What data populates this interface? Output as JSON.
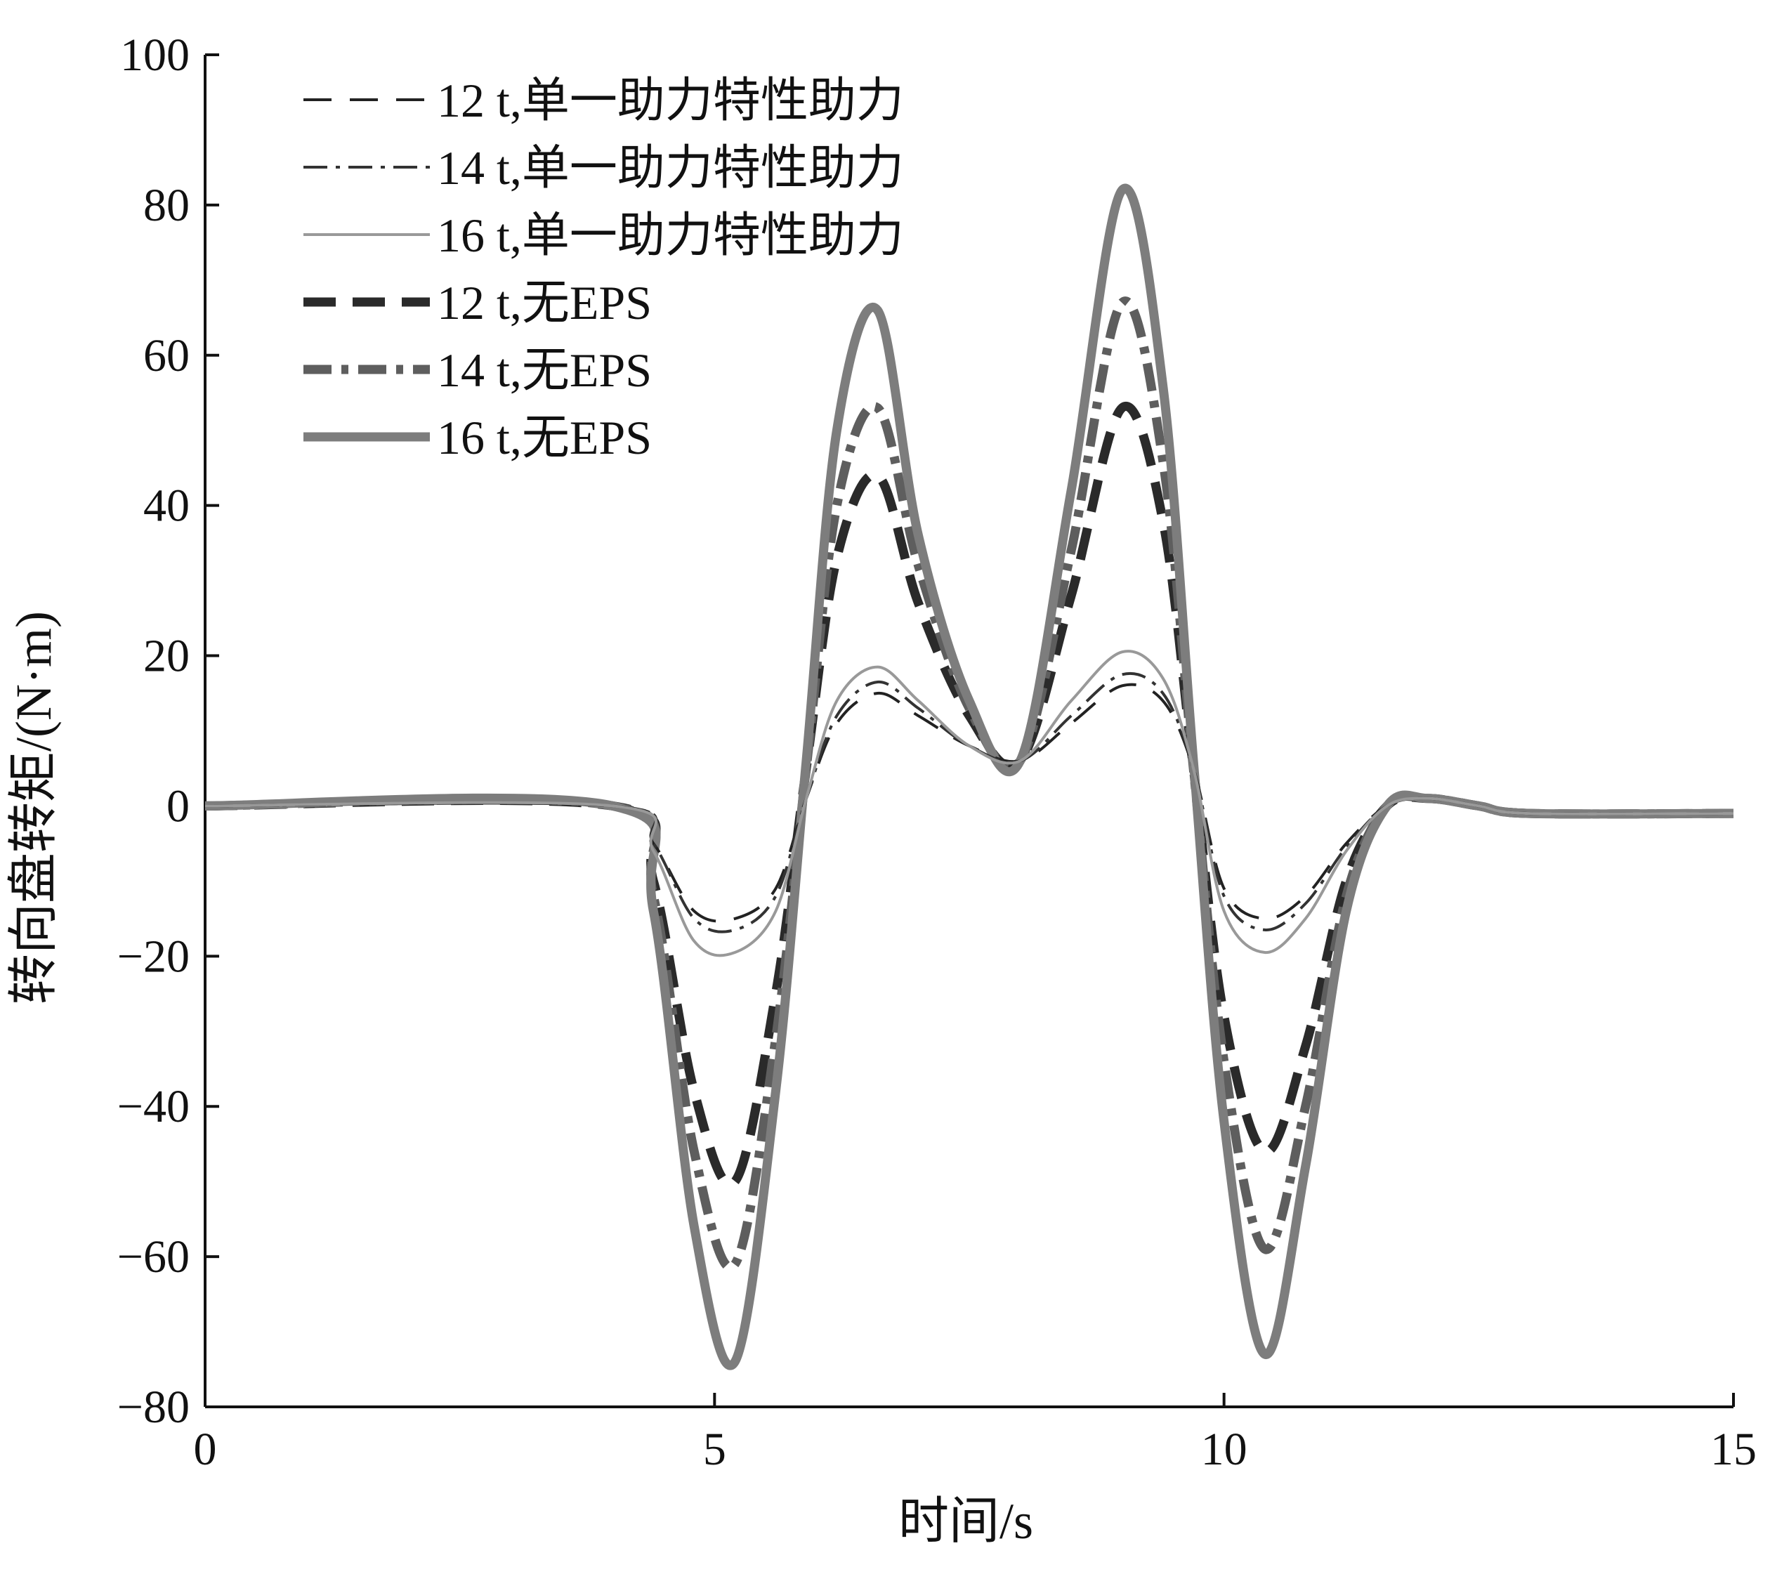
{
  "chart_data": {
    "type": "line",
    "xlabel": "时间/s",
    "ylabel": "转向盘转矩/(N·m)",
    "xlim": [
      0,
      15
    ],
    "ylim": [
      -80,
      100
    ],
    "xticks": [
      "0",
      "5",
      "10",
      "15"
    ],
    "yticks": [
      "−80",
      "−60",
      "−40",
      "−20",
      "0",
      "20",
      "40",
      "60",
      "80",
      "100"
    ],
    "grid": false,
    "legend_position": "top-left",
    "x": [
      0,
      4.0,
      4.4,
      4.8,
      5.2,
      5.6,
      5.9,
      6.2,
      6.6,
      7.0,
      7.5,
      8.0,
      8.5,
      9.0,
      9.4,
      9.7,
      10.0,
      10.4,
      10.8,
      11.2,
      11.6,
      12.0,
      12.5,
      13.0,
      15
    ],
    "series": [
      {
        "name": "12 t,单一助力特性助力",
        "color": "#222222",
        "dash": "40,26",
        "width": 4,
        "values": [
          0,
          0,
          -5,
          -14,
          -15,
          -11,
          1,
          11,
          15,
          12,
          8,
          6,
          11,
          16,
          14,
          5,
          -11,
          -15,
          -12,
          -5,
          0,
          1,
          0,
          -1,
          -1
        ]
      },
      {
        "name": "14 t,单一助力特性助力",
        "color": "#333333",
        "dash": "34,12,6,12",
        "width": 4,
        "values": [
          0,
          0,
          -5,
          -15,
          -16.5,
          -12,
          1,
          12,
          16.5,
          13,
          8,
          6,
          12,
          17.5,
          15,
          5,
          -12,
          -16.5,
          -13,
          -5.5,
          0,
          1,
          0,
          -1,
          -1
        ]
      },
      {
        "name": "16 t,单一助力特性助力",
        "color": "#999999",
        "dash": "",
        "width": 4,
        "values": [
          0,
          0,
          -6,
          -18,
          -19.5,
          -14,
          1,
          14,
          18.5,
          14,
          8,
          6,
          14,
          20.5,
          17,
          5,
          -14,
          -19.5,
          -15,
          -6,
          0,
          1,
          0,
          -1,
          -1
        ]
      },
      {
        "name": "12 t,无EPS",
        "color": "#2a2a2a",
        "dash": "46,24",
        "width": 13,
        "values": [
          0,
          0,
          -10,
          -38,
          -50,
          -25,
          5,
          33,
          44,
          27,
          12,
          6,
          28,
          53,
          38,
          5,
          -28,
          -46,
          -32,
          -10,
          0,
          1,
          0,
          -1,
          -1
        ]
      },
      {
        "name": "14 t,无EPS",
        "color": "#5e5e5e",
        "dash": "40,14,10,14",
        "width": 13,
        "values": [
          0,
          0,
          -12,
          -46,
          -61,
          -31,
          5,
          40,
          53,
          32,
          13,
          6,
          34,
          67,
          46,
          5,
          -34,
          -59,
          -40,
          -12,
          0,
          1,
          0,
          -1,
          -1
        ]
      },
      {
        "name": "16 t,无EPS",
        "color": "#7d7d7d",
        "dash": "",
        "width": 13,
        "values": [
          0,
          0,
          -14,
          -56,
          -74,
          -38,
          6,
          50,
          66,
          36,
          14,
          6,
          42,
          82,
          56,
          6,
          -42,
          -73,
          -48,
          -14,
          0,
          1,
          0,
          -1,
          -1
        ]
      }
    ]
  }
}
